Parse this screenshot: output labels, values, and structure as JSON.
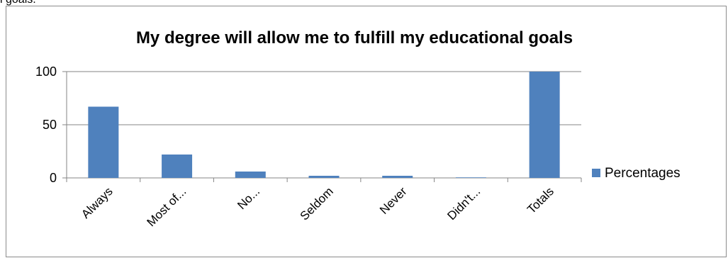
{
  "page": {
    "fragment_text": "l goals."
  },
  "chart_data": {
    "type": "bar",
    "title": "My degree will allow me to fulfill my educational goals",
    "categories": [
      "Always",
      "Most of...",
      "No...",
      "Seldom",
      "Never",
      "Didn't...",
      "Totals"
    ],
    "series": [
      {
        "name": "Percentages",
        "values": [
          67,
          22,
          6,
          2,
          2,
          0.5,
          100
        ],
        "color": "#4f81bd"
      }
    ],
    "yticks": [
      0,
      50,
      100
    ],
    "ylim": [
      0,
      100
    ],
    "xlabel": "",
    "ylabel": "",
    "legend": "right",
    "grid": true
  }
}
